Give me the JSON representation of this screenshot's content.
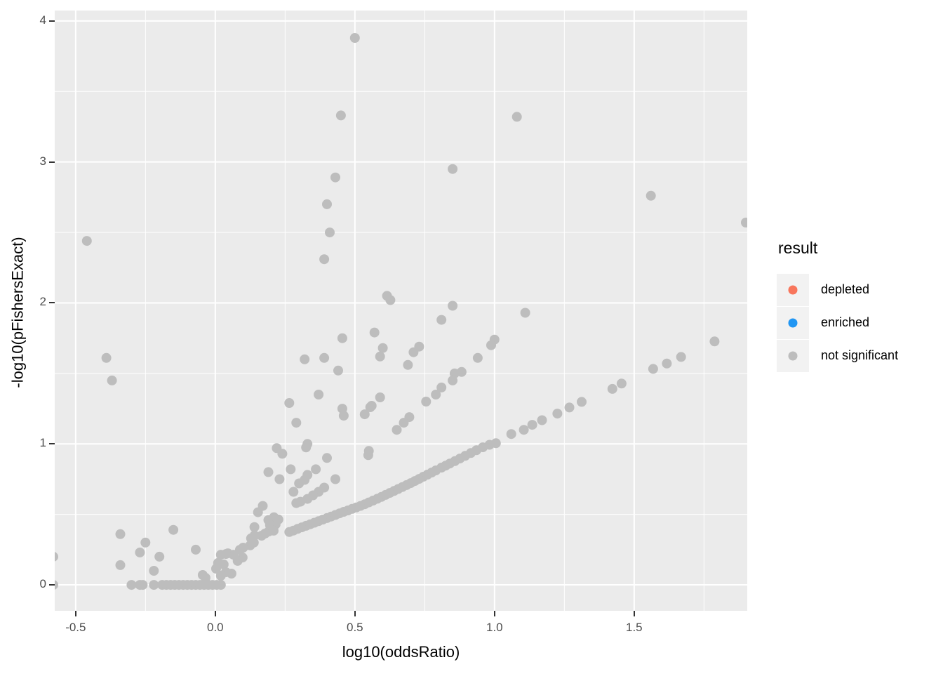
{
  "chart_data": {
    "type": "scatter",
    "title": "",
    "xlabel": "log10(oddsRatio)",
    "ylabel": "-log10(pFishersExact)",
    "xlim": [
      -0.575,
      1.905
    ],
    "ylim": [
      -0.184,
      4.074
    ],
    "x_ticks": {
      "values": [
        -0.5,
        0.0,
        0.5,
        1.0,
        1.5
      ],
      "labels": [
        "-0.5",
        "0.0",
        "0.5",
        "1.0",
        "1.5"
      ]
    },
    "y_ticks": {
      "values": [
        0,
        1,
        2,
        3,
        4
      ],
      "labels": [
        "0",
        "1",
        "2",
        "3",
        "4"
      ]
    },
    "x_minor": [
      -0.25,
      0.25,
      0.75,
      1.25,
      1.75
    ],
    "y_minor": [
      0.5,
      1.5,
      2.5,
      3.5
    ],
    "grid": "white major+minor gridlines on grey panel",
    "panel_bg": "#EBEBEB",
    "point_radius_px": 7,
    "legend": {
      "title": "result",
      "position": "right",
      "items": [
        {
          "label": "depleted",
          "color": "#F8765C"
        },
        {
          "label": "enriched",
          "color": "#2196F3"
        },
        {
          "label": "not significant",
          "color": "#BDBDBD"
        }
      ]
    },
    "series": [
      {
        "name": "depleted",
        "color": "#F8765C",
        "points": []
      },
      {
        "name": "enriched",
        "color": "#2196F3",
        "points": []
      },
      {
        "name": "not significant",
        "color": "#BDBDBD",
        "points": [
          [
            0.5,
            3.88
          ],
          [
            0.45,
            3.33
          ],
          [
            1.08,
            3.32
          ],
          [
            0.85,
            2.95
          ],
          [
            0.43,
            2.89
          ],
          [
            0.4,
            2.7
          ],
          [
            1.56,
            2.76
          ],
          [
            1.9,
            2.57
          ],
          [
            -0.46,
            2.44
          ],
          [
            0.41,
            2.5
          ],
          [
            0.39,
            2.31
          ],
          [
            0.615,
            2.05
          ],
          [
            0.627,
            2.02
          ],
          [
            0.85,
            1.98
          ],
          [
            1.11,
            1.93
          ],
          [
            0.81,
            1.88
          ],
          [
            0.57,
            1.79
          ],
          [
            0.455,
            1.75
          ],
          [
            1.0,
            1.74
          ],
          [
            0.988,
            1.7
          ],
          [
            0.73,
            1.69
          ],
          [
            0.6,
            1.68
          ],
          [
            0.71,
            1.65
          ],
          [
            0.59,
            1.62
          ],
          [
            0.32,
            1.6
          ],
          [
            0.39,
            1.61
          ],
          [
            0.94,
            1.61
          ],
          [
            -0.39,
            1.61
          ],
          [
            0.69,
            1.56
          ],
          [
            0.44,
            1.52
          ],
          [
            0.882,
            1.51
          ],
          [
            0.857,
            1.5
          ],
          [
            -0.37,
            1.45
          ],
          [
            0.85,
            1.45
          ],
          [
            0.81,
            1.4
          ],
          [
            0.79,
            1.35
          ],
          [
            0.37,
            1.35
          ],
          [
            0.59,
            1.33
          ],
          [
            0.755,
            1.3
          ],
          [
            0.265,
            1.29
          ],
          [
            0.56,
            1.27
          ],
          [
            0.555,
            1.26
          ],
          [
            0.455,
            1.25
          ],
          [
            0.535,
            1.21
          ],
          [
            0.46,
            1.2
          ],
          [
            0.695,
            1.19
          ],
          [
            0.29,
            1.15
          ],
          [
            0.675,
            1.15
          ],
          [
            0.65,
            1.1
          ],
          [
            0.33,
            1.0
          ],
          [
            0.325,
            0.975
          ],
          [
            0.22,
            0.97
          ],
          [
            0.55,
            0.95
          ],
          [
            0.24,
            0.93
          ],
          [
            0.548,
            0.92
          ],
          [
            0.4,
            0.9
          ],
          [
            0.27,
            0.82
          ],
          [
            0.36,
            0.82
          ],
          [
            0.19,
            0.8
          ],
          [
            0.33,
            0.78
          ],
          [
            0.23,
            0.75
          ],
          [
            0.43,
            0.75
          ],
          [
            0.32,
            0.745
          ],
          [
            0.3,
            0.72
          ],
          [
            0.39,
            0.69
          ],
          [
            0.28,
            0.66
          ],
          [
            0.37,
            0.66
          ],
          [
            0.35,
            0.635
          ],
          [
            0.33,
            0.61
          ],
          [
            0.305,
            0.59
          ],
          [
            0.29,
            0.58
          ],
          [
            0.17,
            0.56
          ],
          [
            0.153,
            0.515
          ],
          [
            0.21,
            0.48
          ],
          [
            0.19,
            0.46
          ],
          [
            0.226,
            0.464
          ],
          [
            0.216,
            0.429
          ],
          [
            0.196,
            0.424
          ],
          [
            0.14,
            0.41
          ],
          [
            0.209,
            0.384
          ],
          [
            0.191,
            0.379
          ],
          [
            0.178,
            0.364
          ],
          [
            0.166,
            0.349
          ],
          [
            0.14,
            0.35
          ],
          [
            0.128,
            0.33
          ],
          [
            0.138,
            0.3
          ],
          [
            0.125,
            0.28
          ],
          [
            0.1,
            0.264
          ],
          [
            0.088,
            0.249
          ],
          [
            0.098,
            0.194
          ],
          [
            0.08,
            0.17
          ],
          [
            0.065,
            0.214
          ],
          [
            0.045,
            0.224
          ],
          [
            0.038,
            0.219
          ],
          [
            0.02,
            0.214
          ],
          [
            0.03,
            0.145
          ],
          [
            0.01,
            0.155
          ],
          [
            0.003,
            0.115
          ],
          [
            0.058,
            0.08
          ],
          [
            0.038,
            0.09
          ],
          [
            0.02,
            0.065
          ],
          [
            -0.045,
            0.07
          ],
          [
            -0.035,
            0.05
          ],
          [
            -0.07,
            0.25
          ],
          [
            -0.15,
            0.39
          ],
          [
            -0.34,
            0.36
          ],
          [
            -0.25,
            0.3
          ],
          [
            -0.27,
            0.23
          ],
          [
            -0.2,
            0.2
          ],
          [
            -0.34,
            0.14
          ],
          [
            -0.22,
            0.1
          ],
          [
            -0.58,
            0.2
          ],
          [
            -0.58,
            0.0
          ],
          [
            -0.3,
            0
          ],
          [
            -0.27,
            0
          ],
          [
            -0.26,
            0
          ],
          [
            -0.22,
            0
          ],
          [
            -0.19,
            0
          ],
          [
            -0.175,
            0
          ],
          [
            -0.16,
            0
          ],
          [
            -0.145,
            0
          ],
          [
            -0.13,
            0
          ],
          [
            -0.115,
            0
          ],
          [
            -0.1,
            0
          ],
          [
            -0.085,
            0
          ],
          [
            -0.07,
            0
          ],
          [
            -0.055,
            0
          ],
          [
            -0.04,
            0
          ],
          [
            -0.025,
            0
          ],
          [
            -0.01,
            0
          ],
          [
            0.005,
            0
          ],
          [
            0.02,
            0
          ],
          [
            0.265,
            0.375
          ],
          [
            0.28,
            0.385
          ],
          [
            0.295,
            0.397
          ],
          [
            0.31,
            0.408
          ],
          [
            0.325,
            0.419
          ],
          [
            0.34,
            0.43
          ],
          [
            0.355,
            0.441
          ],
          [
            0.37,
            0.452
          ],
          [
            0.385,
            0.463
          ],
          [
            0.4,
            0.474
          ],
          [
            0.415,
            0.485
          ],
          [
            0.43,
            0.496
          ],
          [
            0.445,
            0.507
          ],
          [
            0.46,
            0.518
          ],
          [
            0.475,
            0.528
          ],
          [
            0.49,
            0.539
          ],
          [
            0.505,
            0.549
          ],
          [
            0.52,
            0.56
          ],
          [
            0.535,
            0.572
          ],
          [
            0.55,
            0.585
          ],
          [
            0.565,
            0.598
          ],
          [
            0.58,
            0.611
          ],
          [
            0.595,
            0.624
          ],
          [
            0.61,
            0.638
          ],
          [
            0.625,
            0.652
          ],
          [
            0.64,
            0.666
          ],
          [
            0.655,
            0.68
          ],
          [
            0.67,
            0.694
          ],
          [
            0.685,
            0.708
          ],
          [
            0.7,
            0.722
          ],
          [
            0.715,
            0.737
          ],
          [
            0.73,
            0.752
          ],
          [
            0.745,
            0.767
          ],
          [
            0.76,
            0.782
          ],
          [
            0.775,
            0.797
          ],
          [
            0.79,
            0.812
          ],
          [
            0.81,
            0.832
          ],
          [
            0.825,
            0.846
          ],
          [
            0.84,
            0.861
          ],
          [
            0.858,
            0.878
          ],
          [
            0.876,
            0.896
          ],
          [
            0.895,
            0.915
          ],
          [
            0.915,
            0.935
          ],
          [
            0.935,
            0.955
          ],
          [
            0.958,
            0.976
          ],
          [
            0.982,
            0.994
          ],
          [
            1.005,
            1.005
          ],
          [
            1.06,
            1.07
          ],
          [
            1.105,
            1.1
          ],
          [
            1.135,
            1.135
          ],
          [
            1.17,
            1.168
          ],
          [
            1.225,
            1.215
          ],
          [
            1.268,
            1.258
          ],
          [
            1.312,
            1.298
          ],
          [
            1.422,
            1.39
          ],
          [
            1.455,
            1.428
          ],
          [
            1.568,
            1.532
          ],
          [
            1.617,
            1.57
          ],
          [
            1.668,
            1.617
          ],
          [
            1.788,
            1.727
          ]
        ]
      }
    ]
  }
}
